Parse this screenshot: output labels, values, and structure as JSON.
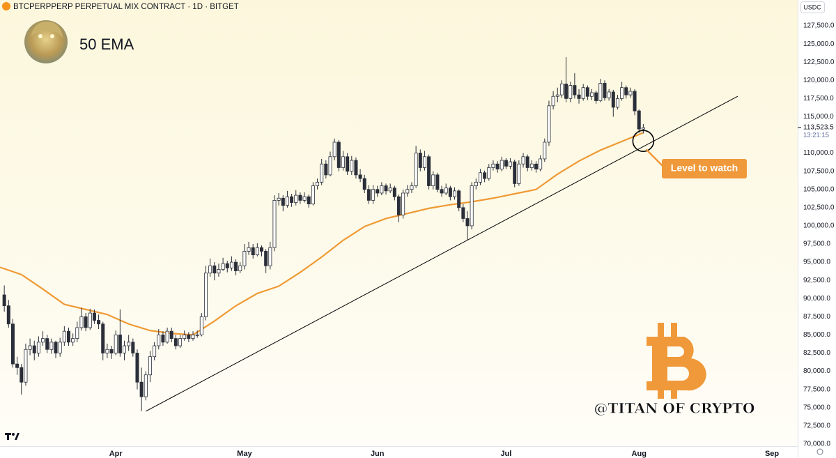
{
  "chart_data": {
    "type": "candlestick",
    "title": "BTCPERPPERP PERPETUAL MIX CONTRACT · 1D · BITGET",
    "currency": "USDC",
    "indicator_label": "50 EMA",
    "callout": "Level to watch",
    "watermark": "@TITAN OF CRYPTO",
    "countdown": "13:21:15",
    "last_price": {
      "value": 113523.5,
      "label": "113,523.5"
    },
    "grid": false,
    "xlim": [
      0,
      186
    ],
    "xticks": [
      {
        "value": 27,
        "label": "Apr"
      },
      {
        "value": 57,
        "label": "May"
      },
      {
        "value": 88,
        "label": "Jun"
      },
      {
        "value": 118,
        "label": "Jul"
      },
      {
        "value": 149,
        "label": "Aug"
      },
      {
        "value": 180,
        "label": "Sep"
      }
    ],
    "ylim": [
      69700,
      131050
    ],
    "yticks": [
      {
        "value": 70000,
        "label": "70,000.0"
      },
      {
        "value": 72500,
        "label": "72,500.0"
      },
      {
        "value": 75000,
        "label": "75,000.0"
      },
      {
        "value": 77500,
        "label": "77,500.0"
      },
      {
        "value": 80000,
        "label": "80,000.0"
      },
      {
        "value": 82500,
        "label": "82,500.0"
      },
      {
        "value": 85000,
        "label": "85,000.0"
      },
      {
        "value": 87500,
        "label": "87,500.0"
      },
      {
        "value": 90000,
        "label": "90,000.0"
      },
      {
        "value": 92500,
        "label": "92,500.0"
      },
      {
        "value": 95000,
        "label": "95,000.0"
      },
      {
        "value": 97500,
        "label": "97,500.0"
      },
      {
        "value": 100000,
        "label": "100,000.0"
      },
      {
        "value": 102500,
        "label": "102,500.0"
      },
      {
        "value": 105000,
        "label": "105,000.0"
      },
      {
        "value": 107500,
        "label": "107,500.0"
      },
      {
        "value": 110000,
        "label": "110,000.0"
      },
      {
        "value": 115000,
        "label": "115,000.0"
      },
      {
        "value": 117500,
        "label": "117,500.0"
      },
      {
        "value": 120000,
        "label": "120,000.0"
      },
      {
        "value": 122500,
        "label": "122,500.0"
      },
      {
        "value": 125000,
        "label": "125,000.0"
      },
      {
        "value": 127500,
        "label": "127,500.0"
      }
    ],
    "candles": {
      "up_color": "#ffffff",
      "down_color": "#2a2e39",
      "wick_color": "#2a2e39",
      "x": [
        1,
        2,
        3,
        4,
        5,
        6,
        7,
        8,
        9,
        10,
        11,
        12,
        13,
        14,
        15,
        16,
        17,
        18,
        19,
        20,
        21,
        22,
        23,
        24,
        25,
        26,
        27,
        28,
        29,
        30,
        31,
        32,
        33,
        34,
        35,
        36,
        37,
        38,
        39,
        40,
        41,
        42,
        43,
        44,
        45,
        46,
        47,
        48,
        49,
        50,
        51,
        52,
        53,
        54,
        55,
        56,
        57,
        58,
        59,
        60,
        61,
        62,
        63,
        64,
        65,
        66,
        67,
        68,
        69,
        70,
        71,
        72,
        73,
        74,
        75,
        76,
        77,
        78,
        79,
        80,
        81,
        82,
        83,
        84,
        85,
        86,
        87,
        88,
        89,
        90,
        91,
        92,
        93,
        94,
        95,
        96,
        97,
        98,
        99,
        100,
        101,
        102,
        103,
        104,
        105,
        106,
        107,
        108,
        109,
        110,
        111,
        112,
        113,
        114,
        115,
        116,
        117,
        118,
        119,
        120,
        121,
        122,
        123,
        124,
        125,
        126,
        127,
        128,
        129,
        130,
        131,
        132,
        133,
        134,
        135,
        136,
        137,
        138,
        139,
        140,
        141,
        142,
        143,
        144,
        145,
        146,
        147,
        148,
        149,
        150
      ],
      "ohlc": [
        [
          90500,
          91800,
          88200,
          89000
        ],
        [
          89000,
          89800,
          86000,
          86500
        ],
        [
          86500,
          87200,
          80500,
          81000
        ],
        [
          81000,
          82000,
          79500,
          80500
        ],
        [
          80500,
          81000,
          76800,
          78500
        ],
        [
          78500,
          83800,
          78000,
          83000
        ],
        [
          83000,
          84500,
          82200,
          83500
        ],
        [
          83500,
          84200,
          81500,
          82500
        ],
        [
          82500,
          84800,
          82000,
          84000
        ],
        [
          84000,
          85500,
          83500,
          84500
        ],
        [
          84500,
          85000,
          82500,
          83000
        ],
        [
          83000,
          84500,
          82400,
          84000
        ],
        [
          84000,
          84200,
          81800,
          82500
        ],
        [
          82500,
          84600,
          82000,
          84000
        ],
        [
          84000,
          86200,
          83500,
          85500
        ],
        [
          85500,
          86000,
          83500,
          84000
        ],
        [
          84000,
          85200,
          83500,
          84500
        ],
        [
          84500,
          86800,
          84000,
          86000
        ],
        [
          86000,
          88700,
          85600,
          87500
        ],
        [
          87500,
          88000,
          85500,
          86000
        ],
        [
          86000,
          88600,
          85700,
          88000
        ],
        [
          88000,
          88500,
          86500,
          87000
        ],
        [
          87000,
          87800,
          85800,
          86500
        ],
        [
          86500,
          86800,
          81500,
          82500
        ],
        [
          82500,
          83800,
          81800,
          83000
        ],
        [
          83000,
          83500,
          81700,
          82500
        ],
        [
          82500,
          85600,
          82200,
          85000
        ],
        [
          85000,
          88500,
          82000,
          82500
        ],
        [
          82500,
          84200,
          81500,
          83500
        ],
        [
          83500,
          85000,
          82800,
          84000
        ],
        [
          84000,
          84500,
          82000,
          82500
        ],
        [
          82500,
          83000,
          77500,
          78500
        ],
        [
          78500,
          80500,
          74500,
          76500
        ],
        [
          76500,
          80000,
          76000,
          79500
        ],
        [
          79500,
          82800,
          78500,
          82000
        ],
        [
          82000,
          84000,
          81500,
          83500
        ],
        [
          83500,
          85800,
          83000,
          85000
        ],
        [
          85000,
          85500,
          83500,
          84000
        ],
        [
          84000,
          86000,
          83800,
          85500
        ],
        [
          85500,
          86000,
          84000,
          84500
        ],
        [
          84500,
          85000,
          83000,
          83500
        ],
        [
          83500,
          85000,
          83200,
          84500
        ],
        [
          84500,
          85600,
          84200,
          85000
        ],
        [
          85000,
          85400,
          84000,
          84500
        ],
        [
          84500,
          85500,
          84200,
          85000
        ],
        [
          85000,
          85600,
          84600,
          85000
        ],
        [
          85000,
          88000,
          84800,
          87500
        ],
        [
          87500,
          94500,
          87000,
          93500
        ],
        [
          93500,
          95500,
          93000,
          94500
        ],
        [
          94500,
          95000,
          92500,
          93500
        ],
        [
          93500,
          94800,
          93000,
          94000
        ],
        [
          94000,
          95600,
          93800,
          94800
        ],
        [
          94800,
          95200,
          93600,
          94200
        ],
        [
          94200,
          95800,
          93800,
          95000
        ],
        [
          95000,
          95400,
          93200,
          93800
        ],
        [
          93800,
          95000,
          93500,
          94500
        ],
        [
          94500,
          97500,
          94000,
          96500
        ],
        [
          96500,
          97800,
          96000,
          97000
        ],
        [
          97000,
          97500,
          95500,
          96000
        ],
        [
          96000,
          97600,
          95800,
          97000
        ],
        [
          97000,
          97300,
          95800,
          96500
        ],
        [
          96500,
          96800,
          93500,
          94500
        ],
        [
          94500,
          97800,
          94000,
          97000
        ],
        [
          97000,
          104200,
          96500,
          103500
        ],
        [
          103500,
          104500,
          102800,
          103800
        ],
        [
          103800,
          104200,
          102000,
          102800
        ],
        [
          102800,
          104800,
          102500,
          104000
        ],
        [
          104000,
          104400,
          102600,
          103200
        ],
        [
          103200,
          104900,
          102800,
          104200
        ],
        [
          104200,
          104600,
          103000,
          103500
        ],
        [
          103500,
          104600,
          103200,
          104000
        ],
        [
          104000,
          104300,
          102500,
          103000
        ],
        [
          103000,
          106000,
          102800,
          105500
        ],
        [
          105500,
          106500,
          105000,
          106000
        ],
        [
          106000,
          109200,
          105600,
          108500
        ],
        [
          108500,
          109000,
          106500,
          107000
        ],
        [
          107000,
          110200,
          106800,
          109500
        ],
        [
          109500,
          112000,
          109000,
          111500
        ],
        [
          111500,
          111800,
          107500,
          108000
        ],
        [
          108000,
          110300,
          107600,
          109500
        ],
        [
          109500,
          110000,
          107000,
          107500
        ],
        [
          107500,
          109600,
          107000,
          109000
        ],
        [
          109000,
          109400,
          106500,
          107000
        ],
        [
          107000,
          107800,
          106000,
          106500
        ],
        [
          106500,
          107000,
          104500,
          105000
        ],
        [
          105000,
          105600,
          103000,
          103500
        ],
        [
          103500,
          105600,
          103000,
          105000
        ],
        [
          105000,
          105500,
          104000,
          104500
        ],
        [
          104500,
          106000,
          104200,
          105500
        ],
        [
          105500,
          105800,
          104300,
          104800
        ],
        [
          104800,
          105800,
          104500,
          105200
        ],
        [
          105200,
          105500,
          103500,
          104000
        ],
        [
          104000,
          104300,
          100500,
          101500
        ],
        [
          101500,
          105000,
          101000,
          104500
        ],
        [
          104500,
          105600,
          104000,
          105000
        ],
        [
          105000,
          106000,
          104500,
          105500
        ],
        [
          105500,
          111000,
          105200,
          110000
        ],
        [
          110000,
          110500,
          107500,
          108000
        ],
        [
          108000,
          110300,
          107600,
          109500
        ],
        [
          109500,
          109800,
          105000,
          105500
        ],
        [
          105500,
          107500,
          105000,
          107000
        ],
        [
          107000,
          107300,
          104600,
          105000
        ],
        [
          105000,
          105500,
          104000,
          104500
        ],
        [
          104500,
          105800,
          104200,
          105200
        ],
        [
          105200,
          105500,
          103500,
          104000
        ],
        [
          104000,
          105300,
          103600,
          104800
        ],
        [
          104800,
          105000,
          102000,
          102500
        ],
        [
          102500,
          103000,
          100500,
          101000
        ],
        [
          101000,
          102000,
          98000,
          100000
        ],
        [
          100000,
          106000,
          99500,
          105500
        ],
        [
          105500,
          106500,
          105000,
          106000
        ],
        [
          106000,
          107800,
          105600,
          107300
        ],
        [
          107300,
          107600,
          106000,
          106500
        ],
        [
          106500,
          108500,
          106200,
          108000
        ],
        [
          108000,
          109000,
          107600,
          108500
        ],
        [
          108500,
          108900,
          107300,
          107800
        ],
        [
          107800,
          109500,
          107500,
          109000
        ],
        [
          109000,
          109300,
          107800,
          108200
        ],
        [
          108200,
          109300,
          107800,
          108800
        ],
        [
          108800,
          109100,
          105300,
          105800
        ],
        [
          105800,
          109000,
          105500,
          108500
        ],
        [
          108500,
          110000,
          108000,
          109500
        ],
        [
          109500,
          109800,
          107500,
          108000
        ],
        [
          108000,
          109000,
          107600,
          108500
        ],
        [
          108500,
          108900,
          107300,
          107800
        ],
        [
          107800,
          109700,
          107500,
          109200
        ],
        [
          109200,
          112000,
          108800,
          111500
        ],
        [
          111500,
          117200,
          111000,
          116500
        ],
        [
          116500,
          118500,
          116000,
          117800
        ],
        [
          117800,
          119000,
          117000,
          118000
        ],
        [
          118000,
          120000,
          117600,
          119500
        ],
        [
          119500,
          123200,
          117000,
          117500
        ],
        [
          117500,
          119800,
          117000,
          119300
        ],
        [
          119300,
          121000,
          117500,
          118000
        ],
        [
          118000,
          118800,
          116800,
          117500
        ],
        [
          117500,
          119500,
          117200,
          119000
        ],
        [
          119000,
          119300,
          117300,
          117800
        ],
        [
          117800,
          118800,
          117300,
          118300
        ],
        [
          118300,
          118600,
          116800,
          117200
        ],
        [
          117200,
          120200,
          117000,
          119600
        ],
        [
          119600,
          120000,
          117200,
          117600
        ],
        [
          117600,
          118800,
          117200,
          118400
        ],
        [
          118400,
          118700,
          115000,
          116300
        ],
        [
          116300,
          118000,
          116000,
          117500
        ],
        [
          117500,
          119800,
          117200,
          119000
        ],
        [
          119000,
          119300,
          117500,
          118000
        ],
        [
          118000,
          119000,
          117600,
          118500
        ],
        [
          118500,
          118800,
          115200,
          115800
        ],
        [
          115800,
          116000,
          112800,
          113300
        ],
        [
          113300,
          114000,
          112700,
          113500
        ]
      ]
    },
    "series": [
      {
        "name": "50 EMA",
        "color": "#ef9a34",
        "x": [
          0,
          5,
          10,
          15,
          20,
          25,
          30,
          35,
          40,
          45,
          50,
          55,
          60,
          65,
          70,
          75,
          80,
          85,
          90,
          95,
          100,
          105,
          110,
          115,
          120,
          125,
          130,
          135,
          140,
          145,
          150
        ],
        "values": [
          94300,
          93300,
          91300,
          89200,
          88500,
          87800,
          86500,
          85600,
          85200,
          85000,
          86900,
          89000,
          90700,
          91700,
          93600,
          95700,
          98000,
          99900,
          101000,
          101700,
          102400,
          102900,
          103300,
          103800,
          104400,
          105000,
          107100,
          108900,
          110400,
          111600,
          112800
        ]
      }
    ],
    "trendline": {
      "color": "#000000",
      "x": [
        34,
        172
      ],
      "values": [
        74500,
        117800
      ]
    }
  }
}
